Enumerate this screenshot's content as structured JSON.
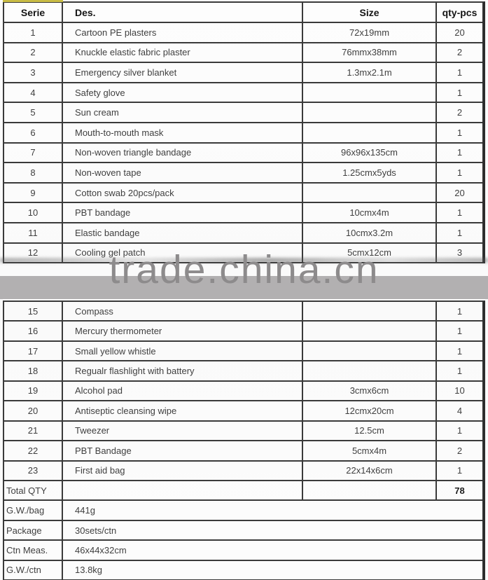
{
  "watermark": {
    "text": "trade.china.cn",
    "band_color": "#b2b0b1",
    "text_color": "#8d8b8c"
  },
  "table": {
    "accent_top_color": "#c9bc45",
    "border_color": "#3a3a3a",
    "header": {
      "serie": "Serie",
      "des": "Des.",
      "size": "Size",
      "qty": "qty-pcs"
    },
    "items_top": [
      {
        "serie": "1",
        "des": "Cartoon PE plasters",
        "size": "72x19mm",
        "qty": "20"
      },
      {
        "serie": "2",
        "des": "Knuckle elastic fabric plaster",
        "size": "76mmx38mm",
        "qty": "2"
      },
      {
        "serie": "3",
        "des": "Emergency silver blanket",
        "size": "1.3mx2.1m",
        "qty": "1"
      },
      {
        "serie": "4",
        "des": "Safety glove",
        "size": "",
        "qty": "1"
      },
      {
        "serie": "5",
        "des": "Sun cream",
        "size": "",
        "qty": "2"
      },
      {
        "serie": "6",
        "des": "Mouth-to-mouth mask",
        "size": "",
        "qty": "1"
      },
      {
        "serie": "7",
        "des": "Non-woven triangle bandage",
        "size": "96x96x135cm",
        "qty": "1"
      },
      {
        "serie": "8",
        "des": "Non-woven tape",
        "size": "1.25cmx5yds",
        "qty": "1"
      },
      {
        "serie": "9",
        "des": "Cotton swab 20pcs/pack",
        "size": "",
        "qty": "20"
      },
      {
        "serie": "10",
        "des": "PBT bandage",
        "size": "10cmx4m",
        "qty": "1"
      },
      {
        "serie": "11",
        "des": "Elastic bandage",
        "size": "10cmx3.2m",
        "qty": "1"
      },
      {
        "serie": "12",
        "des": "Cooling gel patch",
        "size": "5cmx12cm",
        "qty": "3"
      }
    ],
    "items_bottom": [
      {
        "serie": "15",
        "des": "Compass",
        "size": "",
        "qty": "1"
      },
      {
        "serie": "16",
        "des": "Mercury thermometer",
        "size": "",
        "qty": "1"
      },
      {
        "serie": "17",
        "des": "Small yellow whistle",
        "size": "",
        "qty": "1"
      },
      {
        "serie": "18",
        "des": "Regualr flashlight with battery",
        "size": "",
        "qty": "1"
      },
      {
        "serie": "19",
        "des": "Alcohol pad",
        "size": "3cmx6cm",
        "qty": "10"
      },
      {
        "serie": "20",
        "des": "Antiseptic cleansing wipe",
        "size": "12cmx20cm",
        "qty": "4"
      },
      {
        "serie": "21",
        "des": "Tweezer",
        "size": "12.5cm",
        "qty": "1"
      },
      {
        "serie": "22",
        "des": "PBT Bandage",
        "size": "5cmx4m",
        "qty": "2"
      },
      {
        "serie": "23",
        "des": "First aid bag",
        "size": "22x14x6cm",
        "qty": "1"
      }
    ],
    "total_row": {
      "label": "Total QTY",
      "des": "",
      "size": "",
      "qty": "78"
    },
    "spec_rows": [
      {
        "label": "G.W./bag",
        "value": "441g"
      },
      {
        "label": "Package",
        "value": "30sets/ctn"
      },
      {
        "label": "Ctn Meas.",
        "value": "46x44x32cm"
      },
      {
        "label": "G.W./ctn",
        "value": "13.8kg"
      }
    ]
  }
}
